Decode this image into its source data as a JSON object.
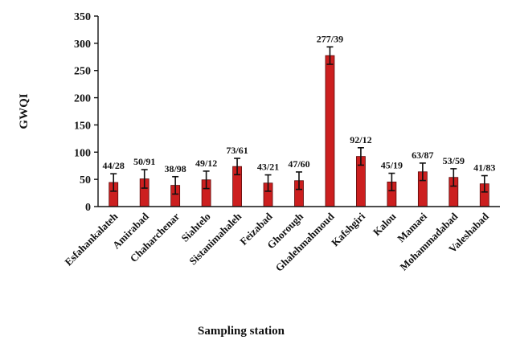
{
  "chart_data": {
    "type": "bar",
    "xlabel": "Sampling station",
    "ylabel": "GWQI",
    "ylim": [
      0,
      350
    ],
    "yticks": [
      "0",
      "50",
      "100",
      "150",
      "200",
      "250",
      "300",
      "350"
    ],
    "grid": false,
    "legend": "none",
    "bar_color": "#cc1f1f",
    "categories": [
      "Esfahankalateh",
      "Amirabad",
      "Chaharchenar",
      "Siahtelo",
      "Sistanimahaleh",
      "Feizabad",
      "Ghorough",
      "Ghalehmahmoud",
      "Kafshgiri",
      "Kalou",
      "Mamaei",
      "Mohammadabad",
      "Valeshabad"
    ],
    "values": [
      44.28,
      50.91,
      38.98,
      49.12,
      73.61,
      43.21,
      47.6,
      277.39,
      92.12,
      45.19,
      63.87,
      53.59,
      41.83
    ],
    "data_labels": [
      "44/28",
      "50/91",
      "38/98",
      "49/12",
      "73/61",
      "43/21",
      "47/60",
      "277/39",
      "92/12",
      "45/19",
      "63/87",
      "53/59",
      "41/83"
    ],
    "errors": [
      16,
      17,
      16,
      16,
      15,
      15,
      16,
      16,
      16,
      16,
      16,
      16,
      15
    ]
  }
}
